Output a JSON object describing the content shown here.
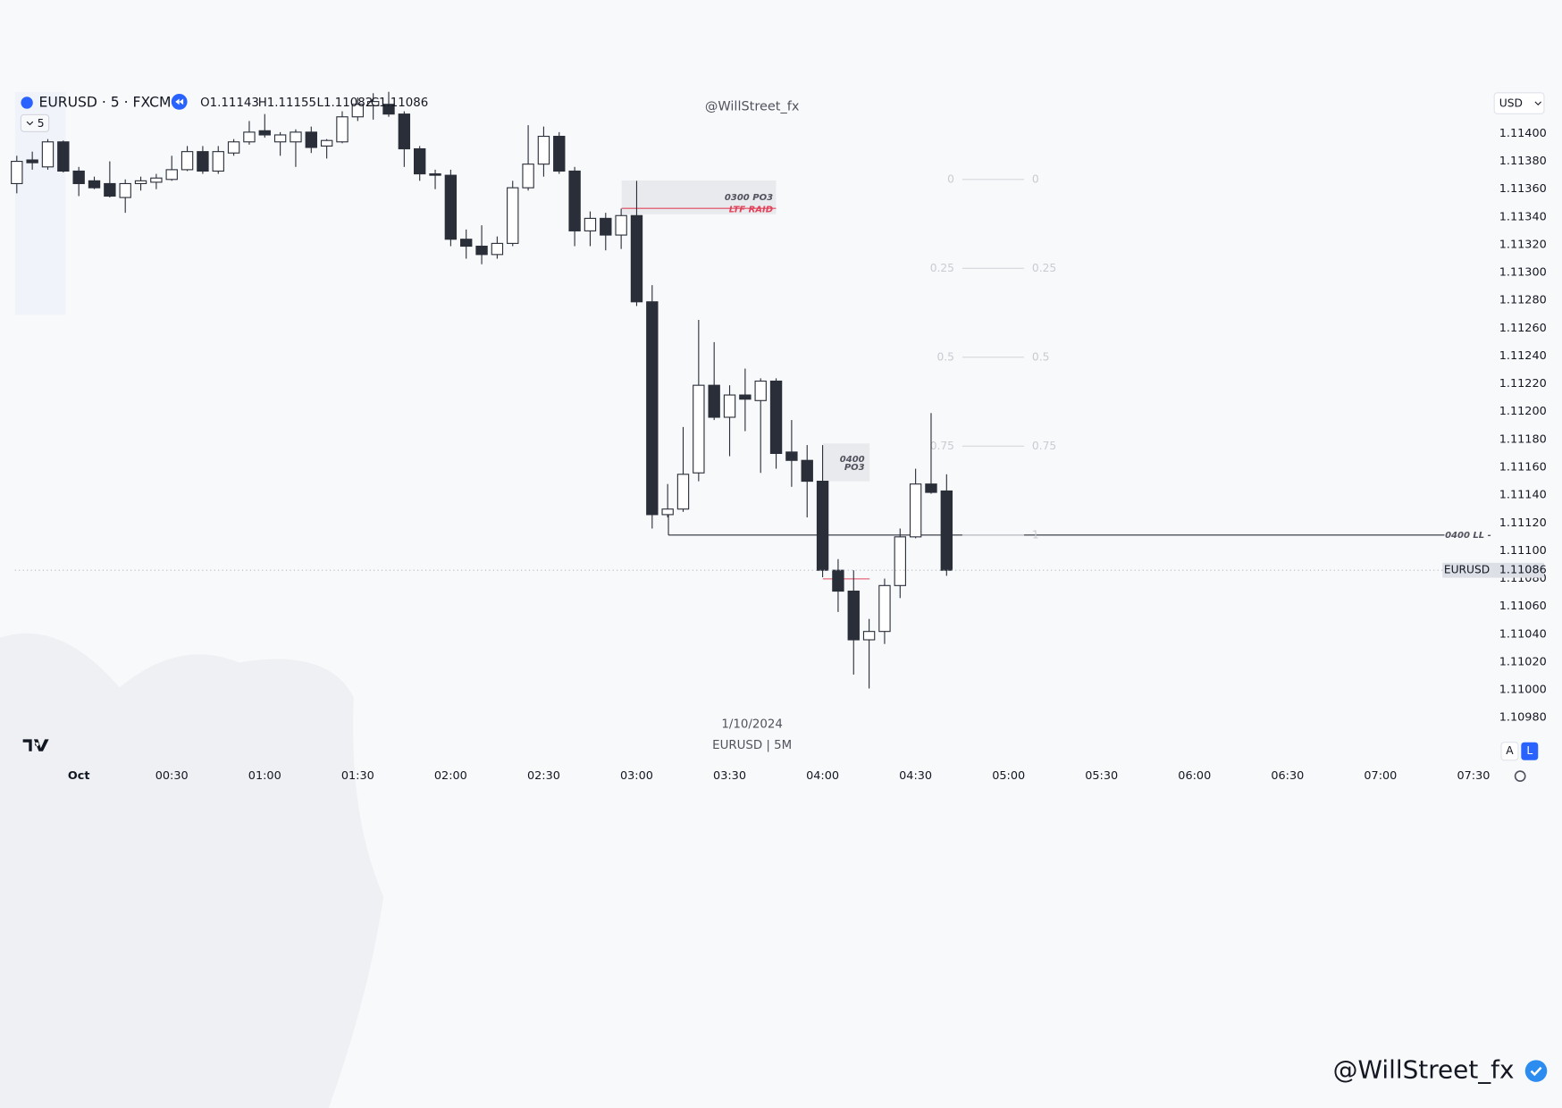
{
  "chart_data": {
    "type": "candlestick",
    "symbol": "EURUSD · 5 · FXCM",
    "interval": "5",
    "ohlc_readout": [
      "O1.11143",
      "H1.11155",
      "L1.11082",
      "C1.11086"
    ],
    "watermark": "@WillStreet_fx",
    "currency": "USD",
    "date_label": "1/10/2024",
    "chart_label": "EURUSD | 5M",
    "scale_buttons": [
      "A",
      "L"
    ],
    "signature": "@WillStreet_fx",
    "x": [
      -20,
      -15,
      -10,
      -5,
      0,
      5,
      10,
      15,
      20,
      25,
      30,
      35,
      40,
      45,
      50,
      55,
      60,
      65,
      70,
      75,
      80,
      85,
      90,
      95,
      100,
      105,
      110,
      115,
      120,
      125,
      130,
      135,
      140,
      145,
      150,
      155,
      160,
      165,
      170,
      175,
      180,
      185,
      190,
      195,
      200,
      205,
      210,
      215,
      220,
      225,
      230,
      235,
      240,
      245,
      250,
      255,
      260,
      265,
      270,
      275,
      280
    ],
    "xlim": [
      -20.6,
      455.1
    ],
    "xticks": [
      {
        "value": 0,
        "label": "Oct"
      },
      {
        "value": 30,
        "label": "00:30"
      },
      {
        "value": 60,
        "label": "01:00"
      },
      {
        "value": 90,
        "label": "01:30"
      },
      {
        "value": 120,
        "label": "02:00"
      },
      {
        "value": 150,
        "label": "02:30"
      },
      {
        "value": 180,
        "label": "03:00"
      },
      {
        "value": 210,
        "label": "03:30"
      },
      {
        "value": 240,
        "label": "04:00"
      },
      {
        "value": 270,
        "label": "04:30"
      },
      {
        "value": 300,
        "label": "05:00"
      },
      {
        "value": 330,
        "label": "05:30"
      },
      {
        "value": 360,
        "label": "06:00"
      },
      {
        "value": 390,
        "label": "06:30"
      },
      {
        "value": 420,
        "label": "07:00"
      },
      {
        "value": 450,
        "label": "07:30"
      }
    ],
    "ylim": [
      1.10948,
      1.1143
    ],
    "yticks": [
      {
        "value": 1.114,
        "label": "1.11400"
      },
      {
        "value": 1.1138,
        "label": "1.11380"
      },
      {
        "value": 1.1136,
        "label": "1.11360"
      },
      {
        "value": 1.1134,
        "label": "1.11340"
      },
      {
        "value": 1.1132,
        "label": "1.11320"
      },
      {
        "value": 1.113,
        "label": "1.11300"
      },
      {
        "value": 1.1128,
        "label": "1.11280"
      },
      {
        "value": 1.1126,
        "label": "1.11260"
      },
      {
        "value": 1.1124,
        "label": "1.11240"
      },
      {
        "value": 1.1122,
        "label": "1.11220"
      },
      {
        "value": 1.112,
        "label": "1.11200"
      },
      {
        "value": 1.1118,
        "label": "1.11180"
      },
      {
        "value": 1.1116,
        "label": "1.11160"
      },
      {
        "value": 1.1114,
        "label": "1.11140"
      },
      {
        "value": 1.1112,
        "label": "1.11120"
      },
      {
        "value": 1.111,
        "label": "1.11100"
      },
      {
        "value": 1.1108,
        "label": "1.11080"
      },
      {
        "value": 1.1106,
        "label": "1.11060"
      },
      {
        "value": 1.1104,
        "label": "1.11040"
      },
      {
        "value": 1.1102,
        "label": "1.11020"
      },
      {
        "value": 1.11,
        "label": "1.11000"
      },
      {
        "value": 1.1098,
        "label": "1.10980"
      }
    ],
    "grid": false,
    "up_color": "#ffffff",
    "down_color": "#2a2e39",
    "series": [
      {
        "name": "EURUSD",
        "open": [
          1.11364,
          1.11381,
          1.11376,
          1.11394,
          1.11373,
          1.11366,
          1.11364,
          1.11354,
          1.11364,
          1.11365,
          1.11367,
          1.11374,
          1.11387,
          1.11373,
          1.11386,
          1.11394,
          1.11402,
          1.11394,
          1.11394,
          1.11401,
          1.11391,
          1.11394,
          1.11412,
          1.1142,
          1.11421,
          1.11414,
          1.11389,
          1.11371,
          1.1137,
          1.11324,
          1.11319,
          1.11313,
          1.11321,
          1.11361,
          1.11378,
          1.11398,
          1.11373,
          1.1133,
          1.11339,
          1.11327,
          1.11341,
          1.11279,
          1.11126,
          1.1113,
          1.11156,
          1.11219,
          1.11196,
          1.11212,
          1.11208,
          1.11222,
          1.11171,
          1.11165,
          1.1115,
          1.11086,
          1.11071,
          1.11036,
          1.11042,
          1.11075,
          1.1111,
          1.11148,
          1.11143
        ],
        "high": [
          1.11384,
          1.11387,
          1.11396,
          1.11395,
          1.11376,
          1.11369,
          1.1138,
          1.11367,
          1.11369,
          1.11371,
          1.11384,
          1.11391,
          1.11391,
          1.11391,
          1.11396,
          1.11409,
          1.11414,
          1.11401,
          1.11403,
          1.11405,
          1.11396,
          1.11416,
          1.11426,
          1.11429,
          1.1143,
          1.11416,
          1.11391,
          1.11374,
          1.11374,
          1.11331,
          1.11334,
          1.11326,
          1.11366,
          1.11406,
          1.11405,
          1.11401,
          1.11376,
          1.11344,
          1.11343,
          1.11346,
          1.11366,
          1.11291,
          1.11148,
          1.11189,
          1.11266,
          1.1125,
          1.11219,
          1.11231,
          1.11224,
          1.11224,
          1.11194,
          1.11176,
          1.11176,
          1.11094,
          1.11086,
          1.11051,
          1.1108,
          1.11116,
          1.11159,
          1.11199,
          1.11155
        ],
        "low": [
          1.11357,
          1.11374,
          1.11374,
          1.11372,
          1.11355,
          1.1136,
          1.11354,
          1.11343,
          1.11359,
          1.1136,
          1.11366,
          1.11373,
          1.11371,
          1.11371,
          1.11384,
          1.11392,
          1.11397,
          1.11384,
          1.11376,
          1.11386,
          1.11382,
          1.11393,
          1.11409,
          1.1141,
          1.11412,
          1.11376,
          1.11366,
          1.1136,
          1.11319,
          1.1131,
          1.11306,
          1.1131,
          1.11319,
          1.11359,
          1.11369,
          1.11371,
          1.11319,
          1.11319,
          1.11316,
          1.11317,
          1.11276,
          1.11116,
          1.11124,
          1.11128,
          1.1115,
          1.11194,
          1.11168,
          1.11186,
          1.11156,
          1.11159,
          1.11146,
          1.11124,
          1.11081,
          1.11056,
          1.11011,
          1.11001,
          1.11033,
          1.11066,
          1.11109,
          1.11141,
          1.11082
        ],
        "close": [
          1.1138,
          1.11379,
          1.11394,
          1.11373,
          1.11364,
          1.11361,
          1.11355,
          1.11364,
          1.11366,
          1.11368,
          1.11374,
          1.11387,
          1.11373,
          1.11387,
          1.11394,
          1.11401,
          1.11399,
          1.11399,
          1.11401,
          1.1139,
          1.11395,
          1.11412,
          1.11421,
          1.11423,
          1.11414,
          1.11389,
          1.11371,
          1.1137,
          1.11324,
          1.11319,
          1.11313,
          1.11321,
          1.11361,
          1.11378,
          1.11398,
          1.11373,
          1.1133,
          1.11339,
          1.11327,
          1.11341,
          1.11279,
          1.11126,
          1.1113,
          1.11155,
          1.11219,
          1.11196,
          1.11212,
          1.11209,
          1.11222,
          1.1117,
          1.11165,
          1.1115,
          1.11086,
          1.11071,
          1.11036,
          1.11042,
          1.11075,
          1.1111,
          1.11148,
          1.11142,
          1.11086
        ]
      }
    ],
    "annotations": {
      "po3_0300": "0300 PO3",
      "ltf_raid": "LTF RAID",
      "po3_0400": [
        "0400",
        "PO3"
      ],
      "ll_0400": "0400 LL -"
    },
    "fib_levels": [
      0,
      0.25,
      0.5,
      0.75,
      1
    ]
  }
}
